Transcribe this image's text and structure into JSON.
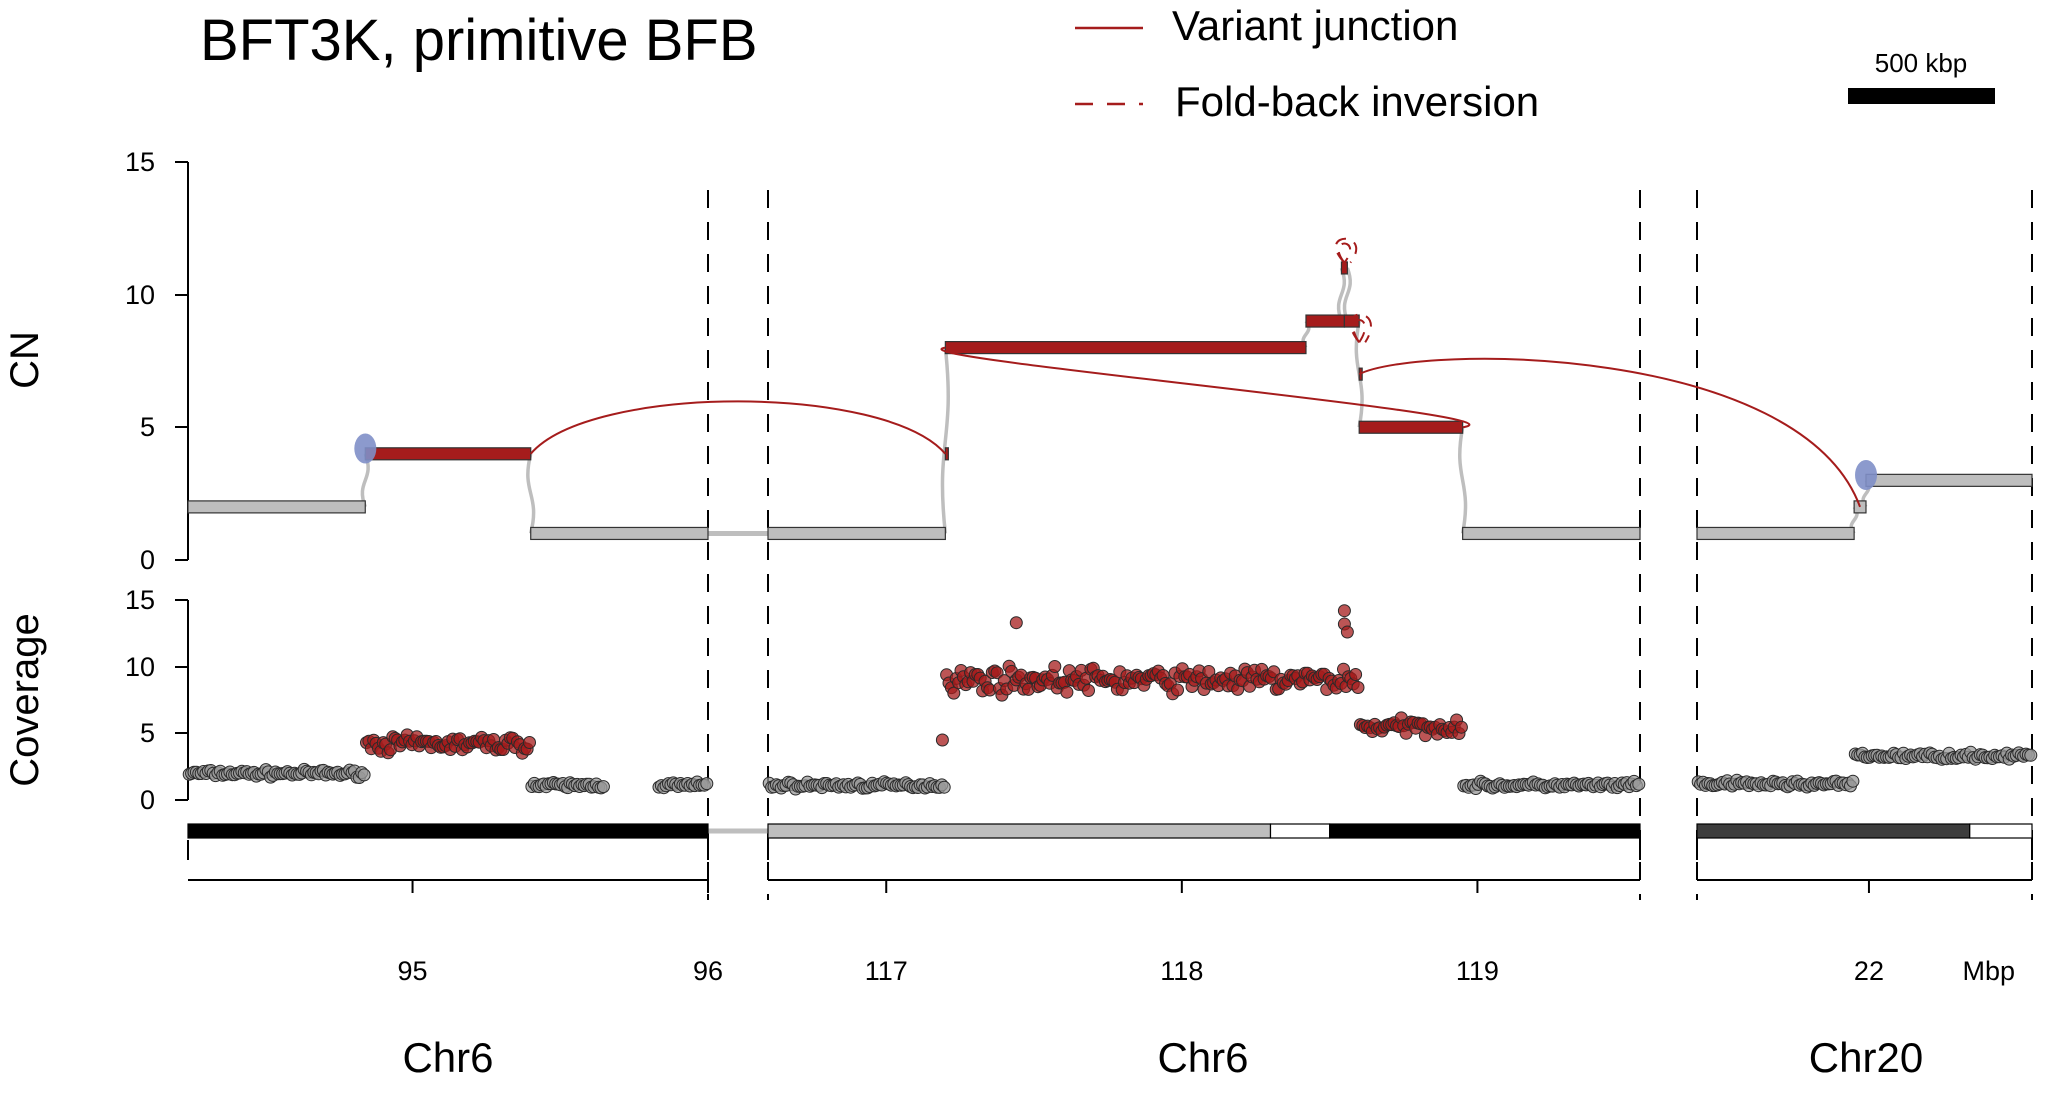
{
  "chart_data": {
    "type": "scatter",
    "title": "BFT3K, primitive BFB",
    "legend": {
      "placement": "top-center",
      "items": [
        {
          "label": "Variant junction",
          "style": "solid",
          "color": "#a51c1c"
        },
        {
          "label": "Fold-back inversion",
          "style": "dashed",
          "color": "#a51c1c"
        }
      ]
    },
    "scale_bar": {
      "label": "500 kbp",
      "kbp": 500
    },
    "ylabel_cn": "CN",
    "ylabel_cov": "Coverage",
    "yticks": [
      "0",
      "5",
      "10",
      "15"
    ],
    "ylim": [
      0,
      15
    ],
    "x_unit": "Mbp",
    "panels": [
      {
        "chrom_label": "Chr6",
        "xlim": [
          94.24,
          96.0
        ],
        "ticks": [
          {
            "v": 95,
            "label": "95"
          },
          {
            "v": 96,
            "label": "96"
          }
        ],
        "cn_segments": [
          {
            "start": 94.24,
            "end": 94.84,
            "cn": 2,
            "amp": false
          },
          {
            "start": 94.84,
            "end": 95.4,
            "cn": 4,
            "amp": true
          },
          {
            "start": 95.4,
            "end": 96.0,
            "cn": 1,
            "amp": false
          }
        ],
        "centromere": [
          {
            "pos": 94.83,
            "cn": 4.2
          }
        ],
        "ideogram": [
          {
            "start": 94.24,
            "end": 96.0,
            "shade": "black"
          }
        ]
      },
      {
        "chrom_label": "Chr6",
        "xlim": [
          116.6,
          119.55
        ],
        "ticks": [
          {
            "v": 117,
            "label": "117"
          },
          {
            "v": 118,
            "label": "118"
          },
          {
            "v": 119,
            "label": "119"
          }
        ],
        "cn_segments": [
          {
            "start": 116.6,
            "end": 117.2,
            "cn": 1,
            "amp": false
          },
          {
            "start": 117.2,
            "end": 117.21,
            "cn": 4,
            "amp": true
          },
          {
            "start": 117.2,
            "end": 118.42,
            "cn": 8,
            "amp": true
          },
          {
            "start": 118.42,
            "end": 118.55,
            "cn": 9,
            "amp": true
          },
          {
            "start": 118.55,
            "end": 118.6,
            "cn": 9,
            "amp": true
          },
          {
            "start": 118.54,
            "end": 118.56,
            "cn": 11,
            "amp": true
          },
          {
            "start": 118.6,
            "end": 118.61,
            "cn": 7,
            "amp": true
          },
          {
            "start": 118.6,
            "end": 118.95,
            "cn": 5,
            "amp": true
          },
          {
            "start": 118.95,
            "end": 119.55,
            "cn": 1,
            "amp": false
          }
        ],
        "centromere": [],
        "ideogram": [
          {
            "start": 116.6,
            "end": 118.3,
            "shade": "gray"
          },
          {
            "start": 118.3,
            "end": 118.5,
            "shade": "white"
          },
          {
            "start": 118.5,
            "end": 119.55,
            "shade": "black"
          }
        ]
      },
      {
        "chrom_label": "Chr20",
        "xlim": [
          21.42,
          22.55
        ],
        "ticks": [
          {
            "v": 22,
            "label": "22"
          }
        ],
        "cn_segments": [
          {
            "start": 21.42,
            "end": 21.95,
            "cn": 1,
            "amp": false
          },
          {
            "start": 21.95,
            "end": 21.99,
            "cn": 2,
            "amp": false
          },
          {
            "start": 21.99,
            "end": 22.55,
            "cn": 3,
            "amp": false
          }
        ],
        "centromere": [
          {
            "pos": 21.98,
            "cn": 3.2
          }
        ],
        "ideogram": [
          {
            "start": 21.42,
            "end": 22.34,
            "shade": "dark"
          },
          {
            "start": 22.34,
            "end": 22.55,
            "shade": "white"
          }
        ]
      }
    ],
    "junctions": [
      {
        "from": {
          "panel": 0,
          "pos": 95.4,
          "cn": 4
        },
        "to": {
          "panel": 1,
          "pos": 117.2,
          "cn": 4
        },
        "peak": 5.5
      },
      {
        "from": {
          "panel": 1,
          "pos": 117.2,
          "cn": 8
        },
        "to": {
          "panel": 1,
          "pos": 118.95,
          "cn": 5
        },
        "peak": 8
      },
      {
        "from": {
          "panel": 1,
          "pos": 118.6,
          "cn": 7
        },
        "to": {
          "panel": 2,
          "pos": 21.97,
          "cn": 2
        },
        "peak": 7
      }
    ],
    "foldbacks": [
      {
        "panel": 1,
        "pos": 118.55,
        "cn": 11.2,
        "height": 1.2
      },
      {
        "panel": 1,
        "pos": 118.6,
        "cn": 8.2,
        "height": 1.4
      }
    ],
    "coverage": [
      {
        "panel": 0,
        "start": 94.24,
        "end": 94.84,
        "level": 2,
        "amp": false
      },
      {
        "panel": 0,
        "start": 94.84,
        "end": 95.4,
        "level": 4.2,
        "amp": true
      },
      {
        "panel": 0,
        "start": 95.4,
        "end": 95.65,
        "level": 1.1,
        "amp": false
      },
      {
        "panel": 0,
        "start": 95.83,
        "end": 96.0,
        "level": 1.1,
        "amp": false
      },
      {
        "panel": 1,
        "start": 116.6,
        "end": 117.2,
        "level": 1.1,
        "amp": false
      },
      {
        "panel": 1,
        "start": 117.2,
        "end": 118.6,
        "level": 9,
        "amp": true
      },
      {
        "panel": 1,
        "start": 118.6,
        "end": 118.95,
        "level": 5.5,
        "amp": true
      },
      {
        "panel": 1,
        "start": 118.95,
        "end": 119.55,
        "level": 1.1,
        "amp": false
      },
      {
        "panel": 2,
        "start": 21.42,
        "end": 21.95,
        "level": 1.2,
        "amp": false
      },
      {
        "panel": 2,
        "start": 21.95,
        "end": 22.55,
        "level": 3.3,
        "amp": false
      }
    ],
    "coverage_outliers": [
      {
        "panel": 1,
        "pos": 117.19,
        "value": 4.5
      },
      {
        "panel": 1,
        "pos": 117.44,
        "value": 13.3
      },
      {
        "panel": 1,
        "pos": 118.55,
        "value": 14.2
      },
      {
        "panel": 1,
        "pos": 118.55,
        "value": 13.2
      },
      {
        "panel": 1,
        "pos": 118.56,
        "value": 12.6
      }
    ],
    "colors": {
      "amp": "#a51c1c",
      "normal": "#bebebe",
      "centromere": "#7f8fc8",
      "line": "#a51c1c"
    }
  }
}
